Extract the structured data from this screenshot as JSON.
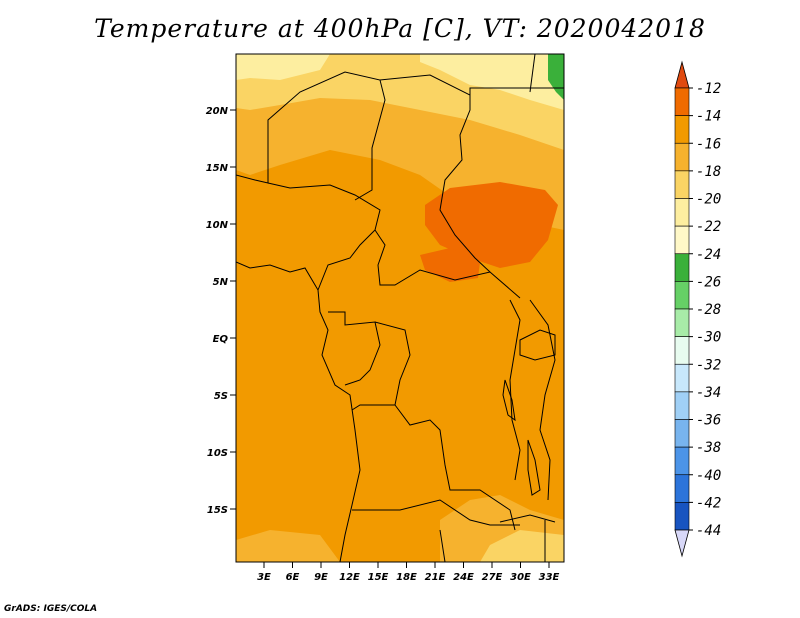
{
  "title": "Temperature at 400hPa [C], VT: 2020042018",
  "credit": "GrADS: IGES/COLA",
  "map": {
    "lat_labels": [
      "20N",
      "15N",
      "10N",
      "5N",
      "EQ",
      "5S",
      "10S",
      "15S"
    ],
    "lon_labels": [
      "3E",
      "6E",
      "9E",
      "12E",
      "15E",
      "18E",
      "21E",
      "24E",
      "27E",
      "30E",
      "33E"
    ]
  },
  "colorbar": {
    "labels": [
      "-12",
      "-14",
      "-16",
      "-18",
      "-20",
      "-22",
      "-24",
      "-26",
      "-28",
      "-30",
      "-32",
      "-34",
      "-36",
      "-38",
      "-40",
      "-42",
      "-44"
    ],
    "colors": [
      "#e04a10",
      "#f06b00",
      "#f29a00",
      "#f6b22e",
      "#fad464",
      "#fdeea0",
      "#fff8c8",
      "#3ab03a",
      "#66d066",
      "#a8eca8",
      "#e8fcf0",
      "#c8e8fc",
      "#a0d0f6",
      "#78b4ee",
      "#4c94e8",
      "#2c74da",
      "#1854c0",
      "#0a30a0",
      "#0a0a70",
      "#d8d8f8"
    ]
  }
}
